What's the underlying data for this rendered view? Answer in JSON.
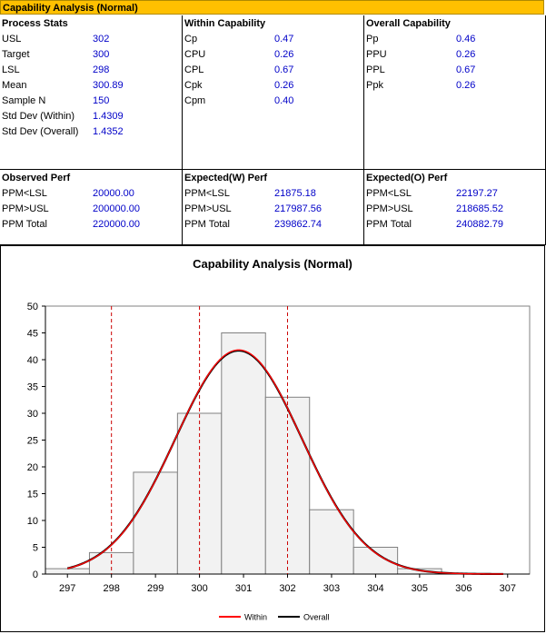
{
  "header": {
    "title": "Capability Analysis (Normal)"
  },
  "process_stats": {
    "title": "Process Stats",
    "rows": [
      {
        "label": "USL",
        "value": "302"
      },
      {
        "label": "Target",
        "value": "300"
      },
      {
        "label": "LSL",
        "value": "298"
      },
      {
        "label": "Mean",
        "value": "300.89"
      },
      {
        "label": "Sample N",
        "value": "150"
      },
      {
        "label": "Std Dev (Within)",
        "value": "1.4309"
      },
      {
        "label": "Std Dev (Overall)",
        "value": "1.4352"
      }
    ]
  },
  "within_capability": {
    "title": "Within Capability",
    "rows": [
      {
        "label": "Cp",
        "value": "0.47"
      },
      {
        "label": "CPU",
        "value": "0.26"
      },
      {
        "label": "CPL",
        "value": "0.67"
      },
      {
        "label": "Cpk",
        "value": "0.26"
      },
      {
        "label": "Cpm",
        "value": "0.40"
      }
    ]
  },
  "overall_capability": {
    "title": "Overall Capability",
    "rows": [
      {
        "label": "Pp",
        "value": "0.46"
      },
      {
        "label": "PPU",
        "value": "0.26"
      },
      {
        "label": "PPL",
        "value": "0.67"
      },
      {
        "label": "Ppk",
        "value": "0.26"
      }
    ]
  },
  "observed_perf": {
    "title": "Observed Perf",
    "rows": [
      {
        "label": "PPM<LSL",
        "value": "20000.00"
      },
      {
        "label": "PPM>USL",
        "value": "200000.00"
      },
      {
        "label": "PPM Total",
        "value": "220000.00"
      }
    ]
  },
  "expected_w_perf": {
    "title": "Expected(W) Perf",
    "rows": [
      {
        "label": "PPM<LSL",
        "value": "21875.18"
      },
      {
        "label": "PPM>USL",
        "value": "217987.56"
      },
      {
        "label": "PPM Total",
        "value": "239862.74"
      }
    ]
  },
  "expected_o_perf": {
    "title": "Expected(O) Perf",
    "rows": [
      {
        "label": "PPM<LSL",
        "value": "22197.27"
      },
      {
        "label": "PPM>USL",
        "value": "218685.52"
      },
      {
        "label": "PPM Total",
        "value": "240882.79"
      }
    ]
  },
  "chart_data": {
    "type": "bar",
    "title": "Capability Analysis (Normal)",
    "xlim": [
      296.5,
      307.5
    ],
    "ylim": [
      0,
      50
    ],
    "y_ticks": [
      0,
      5,
      10,
      15,
      20,
      25,
      30,
      35,
      40,
      45,
      50
    ],
    "x_ticks": [
      297,
      298,
      299,
      300,
      301,
      302,
      303,
      304,
      305,
      306,
      307
    ],
    "histogram": {
      "bin_edges": [
        296.5,
        297.5,
        298.5,
        299.5,
        300.5,
        301.5,
        302.5,
        303.5,
        304.5,
        305.5,
        306.5,
        307.5
      ],
      "counts": [
        1,
        4,
        19,
        30,
        45,
        33,
        12,
        5,
        1,
        0,
        0
      ]
    },
    "spec_lines": [
      298,
      300,
      302
    ],
    "curves": [
      {
        "name": "Within",
        "color": "#ff0000",
        "mean": 300.89,
        "sd": 1.4309,
        "n": 150
      },
      {
        "name": "Overall",
        "color": "#000000",
        "mean": 300.89,
        "sd": 1.4352,
        "n": 150
      }
    ],
    "spec_line_color": "#cc0000",
    "legend_position": "bottom",
    "grid": false
  }
}
